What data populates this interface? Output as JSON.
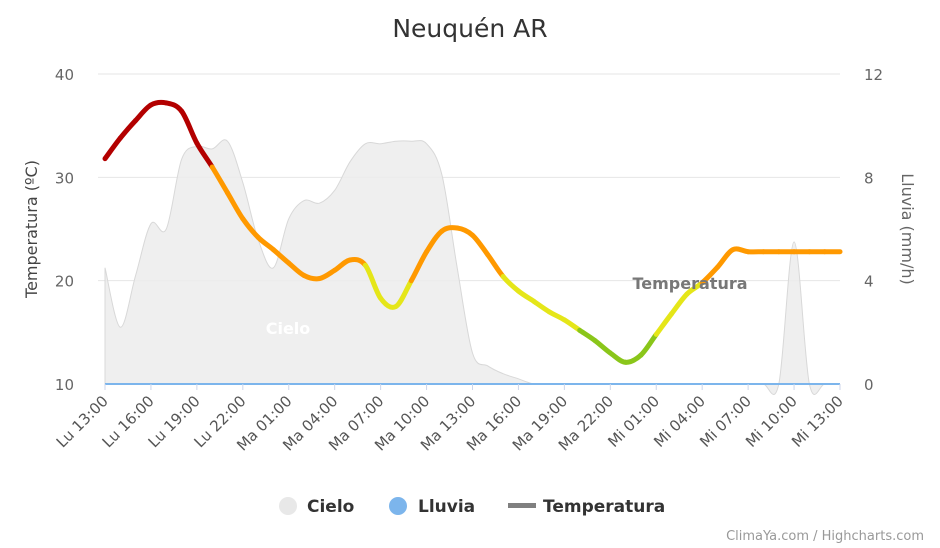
{
  "chart_data": {
    "type": "line",
    "title": "Neuquén AR",
    "credits": "ClimaYa.com / Highcharts.com",
    "y_left": {
      "label": "Temperatura (ºC)",
      "min": 10,
      "max": 40,
      "ticks": [
        10,
        20,
        30,
        40
      ]
    },
    "y_right": {
      "label": "Lluvia (mm/h)",
      "min": 0,
      "max": 12,
      "ticks": [
        0,
        4,
        8,
        12
      ]
    },
    "x": {
      "hours": [
        0,
        1,
        2,
        3,
        4,
        5,
        6,
        7,
        8,
        9,
        10,
        11,
        12,
        13,
        14,
        15,
        16,
        17,
        18,
        19,
        20,
        21,
        22,
        23,
        24,
        25,
        26,
        27,
        28,
        29,
        30,
        31,
        32,
        33,
        34,
        35,
        36,
        37,
        38,
        39,
        40,
        41,
        42,
        43,
        44,
        45,
        46,
        47,
        48
      ],
      "tick_labels": [
        "Lu 13:00",
        "Lu 16:00",
        "Lu 19:00",
        "Lu 22:00",
        "Ma 01:00",
        "Ma 04:00",
        "Ma 07:00",
        "Ma 10:00",
        "Ma 13:00",
        "Ma 16:00",
        "Ma 19:00",
        "Ma 22:00",
        "Mi 01:00",
        "Mi 04:00",
        "Mi 07:00",
        "Mi 10:00",
        "Mi 13:00"
      ]
    },
    "series": [
      {
        "name": "Cielo",
        "type": "area",
        "color": "#e8e8e8",
        "label": "Cielo",
        "values": [
          4.5,
          2.2,
          4.2,
          6.2,
          6.0,
          8.7,
          9.2,
          9.1,
          9.4,
          7.8,
          5.6,
          4.5,
          6.4,
          7.1,
          7.0,
          7.5,
          8.6,
          9.3,
          9.3,
          9.4,
          9.4,
          9.3,
          8.1,
          4.5,
          1.2,
          0.7,
          0.4,
          0.2,
          0,
          0,
          0,
          0,
          0,
          0,
          0,
          0,
          0,
          0,
          0,
          0,
          0,
          0,
          0,
          0,
          0,
          5.5,
          0,
          0,
          0
        ]
      },
      {
        "name": "Lluvia",
        "type": "line",
        "color": "#7cb5ec",
        "values": [
          0,
          0,
          0,
          0,
          0,
          0,
          0,
          0,
          0,
          0,
          0,
          0,
          0,
          0,
          0,
          0,
          0,
          0,
          0,
          0,
          0,
          0,
          0,
          0,
          0,
          0,
          0,
          0,
          0,
          0,
          0,
          0,
          0,
          0,
          0,
          0,
          0,
          0,
          0,
          0,
          0,
          0,
          0,
          0,
          0,
          0,
          0,
          0,
          0
        ]
      },
      {
        "name": "Temperatura",
        "type": "line",
        "color": "#808080",
        "label": "Temperatura",
        "values": [
          31.8,
          33.8,
          35.5,
          37.0,
          37.2,
          36.4,
          33.3,
          31.0,
          28.5,
          26.0,
          24.2,
          23.0,
          21.7,
          20.5,
          20.2,
          21.0,
          22.0,
          21.5,
          18.3,
          17.5,
          20.0,
          22.8,
          24.8,
          25.1,
          24.4,
          22.5,
          20.4,
          19.0,
          18.0,
          17.0,
          16.2,
          15.2,
          14.2,
          13.0,
          12.1,
          12.8,
          14.8,
          16.8,
          18.7,
          19.8,
          21.3,
          23.0,
          22.8,
          22.8,
          22.8,
          22.8,
          22.8,
          22.8,
          22.8
        ]
      }
    ],
    "legend": {
      "placement": "bottom-center",
      "entries": [
        "Cielo",
        "Lluvia",
        "Temperatura"
      ]
    }
  }
}
